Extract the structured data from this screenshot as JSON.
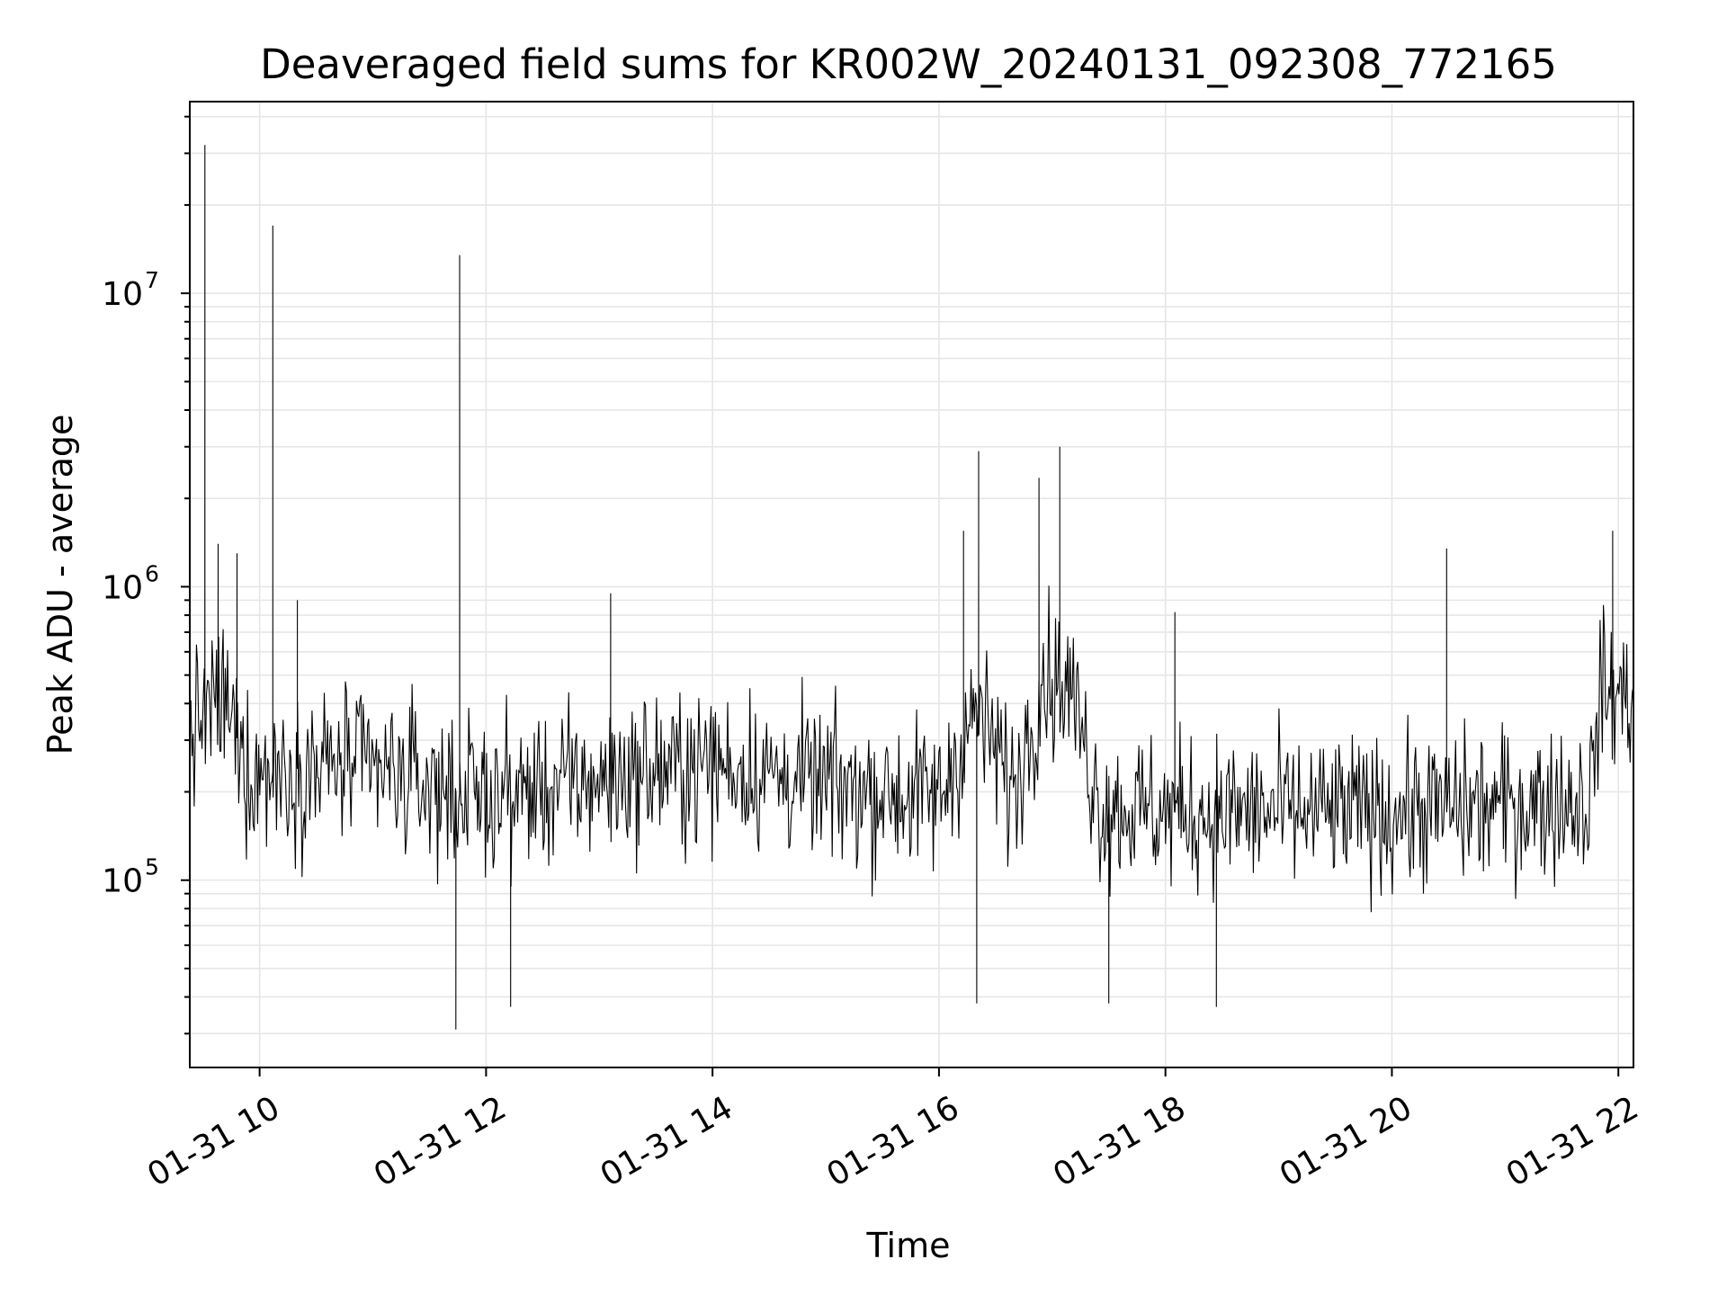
{
  "chart_data": {
    "type": "line",
    "title": "Deaveraged field sums for KR002W_20240131_092308_772165",
    "xlabel": "Time",
    "ylabel": "Peak ADU - average",
    "yscale": "log",
    "xlim": [
      "2024-01-31 09:23",
      "2024-01-31 22:08"
    ],
    "ylim": [
      23000,
      45000000
    ],
    "grid": true,
    "x_ticks": [
      {
        "value": "2024-01-31 10:00",
        "label": "01-31 10"
      },
      {
        "value": "2024-01-31 12:00",
        "label": "01-31 12"
      },
      {
        "value": "2024-01-31 14:00",
        "label": "01-31 14"
      },
      {
        "value": "2024-01-31 16:00",
        "label": "01-31 16"
      },
      {
        "value": "2024-01-31 18:00",
        "label": "01-31 18"
      },
      {
        "value": "2024-01-31 20:00",
        "label": "01-31 20"
      },
      {
        "value": "2024-01-31 22:00",
        "label": "01-31 22"
      }
    ],
    "y_ticks": [
      {
        "value": 100000,
        "base": "10",
        "exp": "5"
      },
      {
        "value": 1000000,
        "base": "10",
        "exp": "6"
      },
      {
        "value": 10000000,
        "base": "10",
        "exp": "7"
      }
    ],
    "series": [
      {
        "color": "#000000",
        "baseline": [
          [
            "2024-01-31 09:23",
            320000
          ],
          [
            "2024-01-31 09:40",
            420000
          ],
          [
            "2024-01-31 09:55",
            230000
          ],
          [
            "2024-01-31 10:45",
            250000
          ],
          [
            "2024-01-31 11:30",
            210000
          ],
          [
            "2024-01-31 12:00",
            190000
          ],
          [
            "2024-01-31 13:00",
            220000
          ],
          [
            "2024-01-31 14:00",
            250000
          ],
          [
            "2024-01-31 15:00",
            210000
          ],
          [
            "2024-01-31 16:00",
            190000
          ],
          [
            "2024-01-31 16:20",
            380000
          ],
          [
            "2024-01-31 16:40",
            200000
          ],
          [
            "2024-01-31 16:55",
            500000
          ],
          [
            "2024-01-31 17:10",
            450000
          ],
          [
            "2024-01-31 17:25",
            180000
          ],
          [
            "2024-01-31 18:00",
            170000
          ],
          [
            "2024-01-31 19:00",
            170000
          ],
          [
            "2024-01-31 20:00",
            170000
          ],
          [
            "2024-01-31 21:00",
            180000
          ],
          [
            "2024-01-31 21:45",
            190000
          ],
          [
            "2024-01-31 21:50",
            430000
          ],
          [
            "2024-01-31 22:08",
            430000
          ]
        ],
        "spikes": [
          [
            "2024-01-31 09:31",
            32000000
          ],
          [
            "2024-01-31 10:07",
            17000000
          ],
          [
            "2024-01-31 11:46",
            13500000
          ],
          [
            "2024-01-31 11:44",
            31000
          ],
          [
            "2024-01-31 12:13",
            37000
          ],
          [
            "2024-01-31 13:06",
            950000
          ],
          [
            "2024-01-31 16:13",
            1550000
          ],
          [
            "2024-01-31 16:21",
            1450000
          ],
          [
            "2024-01-31 16:20",
            38000
          ],
          [
            "2024-01-31 16:21",
            2900000
          ],
          [
            "2024-01-31 16:53",
            2350000
          ],
          [
            "2024-01-31 17:04",
            3000000
          ],
          [
            "2024-01-31 17:30",
            38000
          ],
          [
            "2024-01-31 18:05",
            820000
          ],
          [
            "2024-01-31 18:27",
            37000
          ],
          [
            "2024-01-31 20:29",
            1350000
          ],
          [
            "2024-01-31 21:57",
            1550000
          ],
          [
            "2024-01-31 09:38",
            1400000
          ],
          [
            "2024-01-31 09:48",
            1300000
          ],
          [
            "2024-01-31 10:20",
            900000
          ]
        ],
        "noise_sigma_log10": 0.13,
        "sample_count": 1300
      }
    ]
  }
}
